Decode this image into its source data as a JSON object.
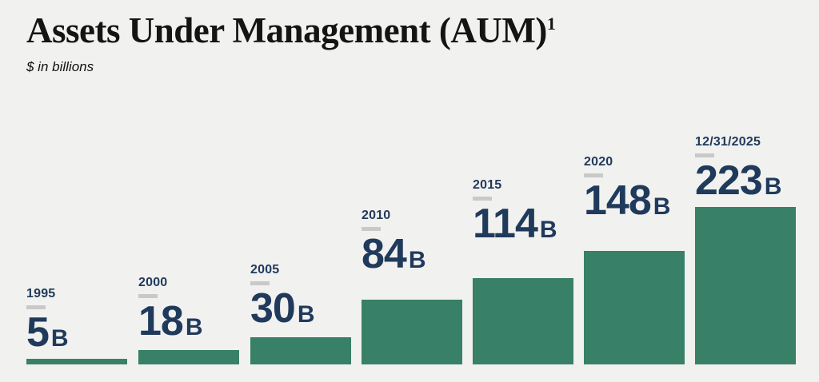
{
  "header": {
    "title": "Assets Under Management (AUM)",
    "title_superscript": "1",
    "subtitle": "$ in billions"
  },
  "chart_data": {
    "type": "bar",
    "title": "Assets Under Management (AUM)",
    "units": "$ in billions",
    "categories": [
      "1995",
      "2000",
      "2005",
      "2010",
      "2015",
      "2020",
      "12/31/2025"
    ],
    "values": [
      5,
      18,
      30,
      84,
      114,
      148,
      223
    ],
    "value_labels": [
      "5",
      "18",
      "30",
      "84",
      "114",
      "148",
      "223"
    ],
    "value_suffix": "B",
    "ylim": [
      0,
      223
    ],
    "grid": false,
    "legend": false,
    "colors": {
      "bar": "#388067",
      "label_text": "#203a5c",
      "accent_dash": "#c9c9c9",
      "background": "#f1f1ef",
      "title_text": "#141414"
    }
  }
}
